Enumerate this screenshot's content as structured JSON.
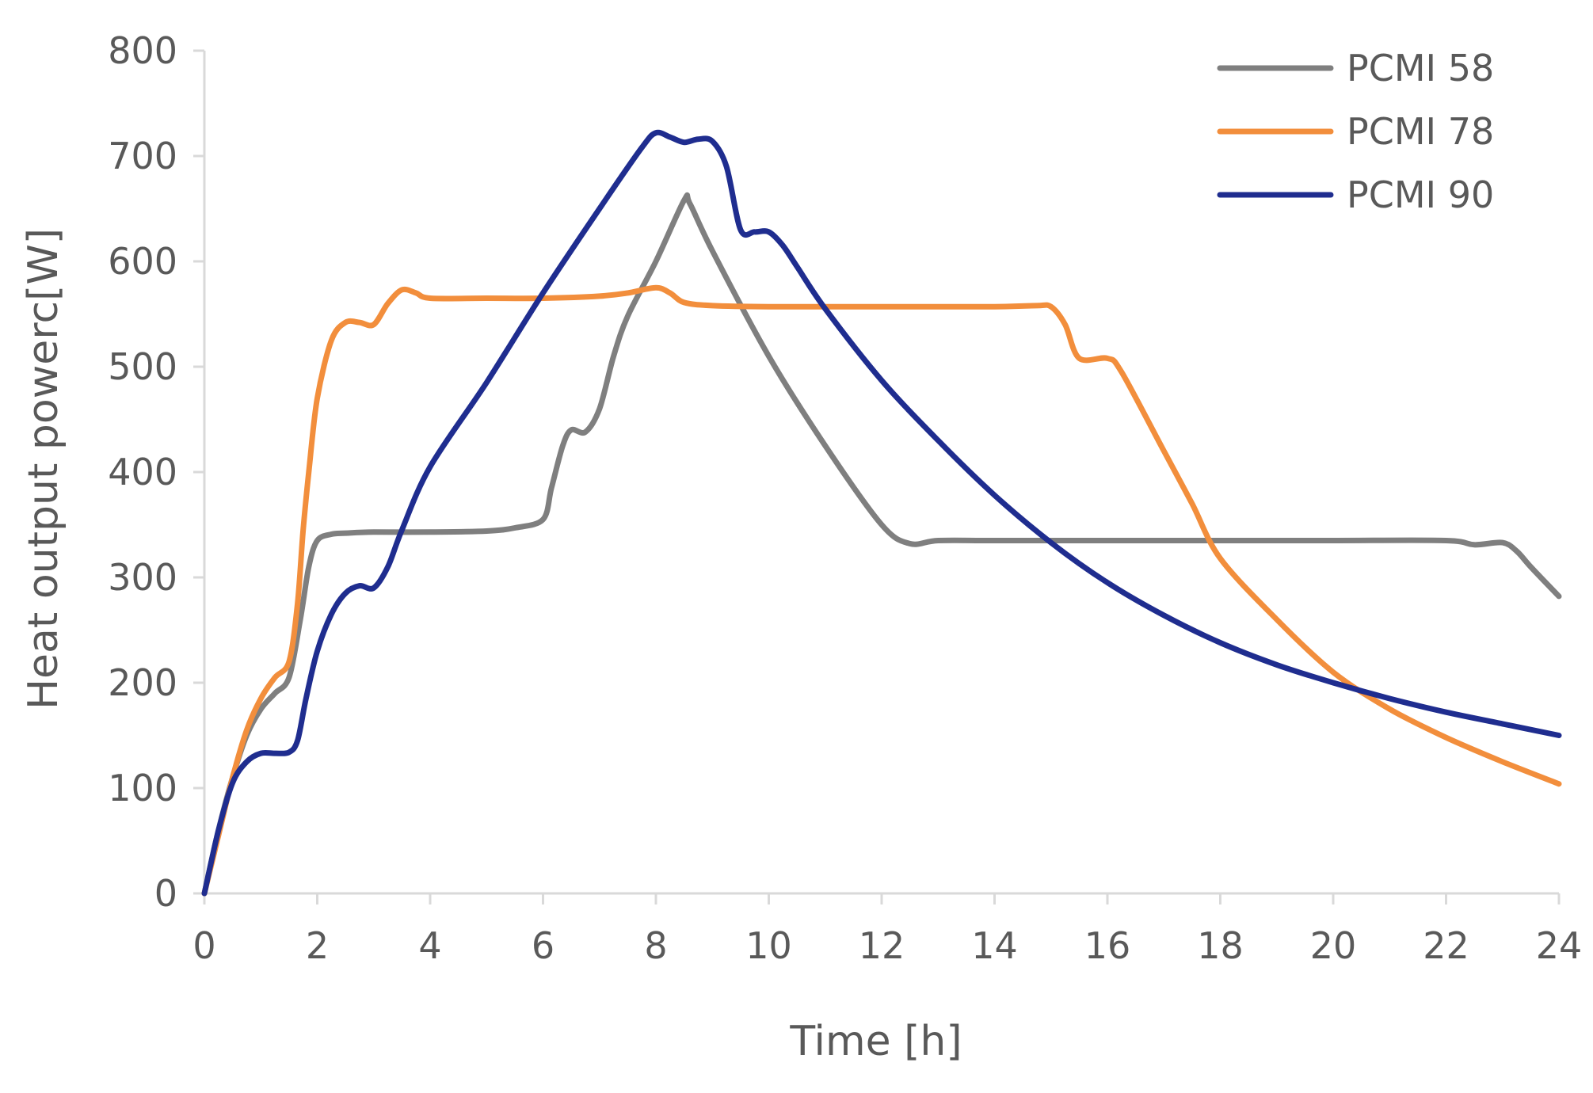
{
  "chart_data": {
    "type": "line",
    "title": "",
    "xlabel": "Time [h]",
    "ylabel": "Heat output powerc[W]",
    "xlim": [
      0,
      24
    ],
    "ylim": [
      0,
      800
    ],
    "xticks": [
      0,
      2,
      4,
      6,
      8,
      10,
      12,
      14,
      16,
      18,
      20,
      22,
      24
    ],
    "yticks": [
      0,
      100,
      200,
      300,
      400,
      500,
      600,
      700,
      800
    ],
    "grid": false,
    "legend_position": "top-right",
    "series": [
      {
        "name": "PCMI 58",
        "color": "#7f7f7f",
        "x": [
          0,
          0.25,
          0.5,
          0.75,
          1,
          1.25,
          1.5,
          1.7,
          1.85,
          2,
          2.25,
          2.5,
          3,
          4,
          5,
          5.5,
          6,
          6.15,
          6.35,
          6.5,
          6.75,
          7,
          7.25,
          7.5,
          8,
          8.5,
          8.6,
          9,
          10,
          11,
          12,
          12.5,
          13,
          14,
          16,
          18,
          20,
          22,
          22.5,
          23,
          23.25,
          23.5,
          24
        ],
        "y": [
          0,
          60,
          110,
          150,
          175,
          190,
          205,
          260,
          310,
          335,
          341,
          342,
          343,
          343,
          344,
          347,
          355,
          385,
          425,
          440,
          438,
          460,
          510,
          548,
          600,
          658,
          655,
          610,
          510,
          425,
          350,
          332,
          335,
          335,
          335,
          335,
          335,
          335,
          331,
          333,
          325,
          310,
          282
        ]
      },
      {
        "name": "PCMI 78",
        "color": "#f28e3c",
        "x": [
          0,
          0.25,
          0.5,
          0.75,
          1,
          1.25,
          1.5,
          1.65,
          1.75,
          1.85,
          2,
          2.25,
          2.5,
          2.75,
          3,
          3.25,
          3.5,
          3.75,
          4,
          5,
          6,
          7,
          7.5,
          8,
          8.25,
          8.5,
          9,
          10,
          12,
          14,
          14.75,
          15,
          15.25,
          15.5,
          16,
          16.25,
          17,
          17.5,
          18,
          19,
          20,
          21,
          22,
          23,
          24
        ],
        "y": [
          0,
          55,
          110,
          155,
          185,
          205,
          220,
          275,
          345,
          400,
          470,
          525,
          542,
          542,
          540,
          560,
          573,
          570,
          565,
          565,
          565,
          567,
          570,
          575,
          570,
          561,
          558,
          557,
          557,
          557,
          558,
          557,
          540,
          508,
          508,
          495,
          420,
          370,
          318,
          260,
          210,
          175,
          148,
          125,
          104
        ]
      },
      {
        "name": "PCMI 90",
        "color": "#1f2d8f",
        "x": [
          0,
          0.25,
          0.5,
          0.75,
          1,
          1.25,
          1.5,
          1.65,
          1.8,
          2,
          2.25,
          2.5,
          2.75,
          3,
          3.25,
          3.5,
          4,
          5,
          6,
          7,
          7.75,
          8,
          8.25,
          8.5,
          8.75,
          9,
          9.25,
          9.5,
          9.75,
          10,
          10.25,
          10.5,
          11,
          12,
          13,
          14,
          15,
          16,
          17,
          18,
          19,
          20,
          21,
          22,
          23,
          24
        ],
        "y": [
          0,
          60,
          105,
          125,
          133,
          133,
          134,
          145,
          185,
          230,
          265,
          285,
          292,
          290,
          310,
          345,
          405,
          485,
          570,
          650,
          708,
          722,
          718,
          713,
          716,
          714,
          690,
          630,
          628,
          628,
          615,
          595,
          555,
          487,
          430,
          378,
          333,
          295,
          264,
          238,
          217,
          200,
          185,
          172,
          161,
          150
        ]
      }
    ]
  }
}
